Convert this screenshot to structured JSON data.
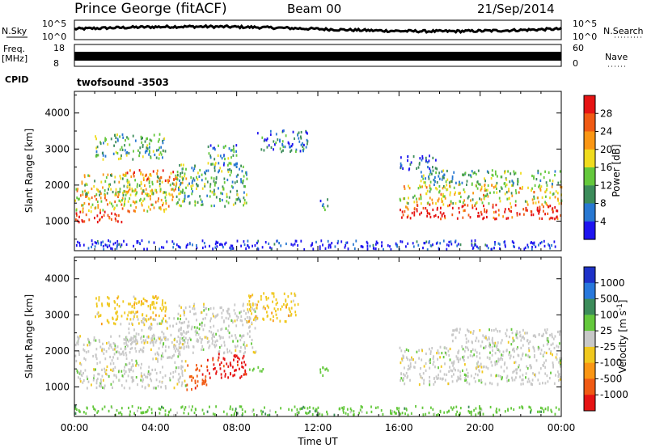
{
  "header": {
    "title": "Prince George (fitACF)",
    "beam": "Beam 00",
    "date": "21/Sep/2014"
  },
  "strips": {
    "nsky_label": "N.Sky",
    "nsky_ticks_left": [
      "10^5",
      "10^0"
    ],
    "nsky_ticks_right": [
      "10^5",
      "10^0"
    ],
    "nsearch_label": "N.Search",
    "freq_label": "Freq.",
    "freq_unit": "[MHz]",
    "freq_ticks": [
      "18",
      "8"
    ],
    "nave_label": "Nave",
    "nave_ticks": [
      "60",
      "0"
    ],
    "cpid_label": "CPID",
    "cpid_value": "twofsound -3503"
  },
  "chart_data": [
    {
      "type": "heatmap",
      "ylabel": "Slant Range [km]",
      "xlabel": "Time UT",
      "x_ticks": [
        "00:00",
        "04:00",
        "08:00",
        "12:00",
        "16:00",
        "20:00",
        "00:00"
      ],
      "y_ticks": [
        "1000",
        "2000",
        "3000",
        "4000"
      ],
      "ylim": [
        180,
        4600
      ],
      "colorbar": {
        "label": "Power [dB]",
        "ticks": [
          "4",
          "8",
          "12",
          "16",
          "20",
          "24",
          "28"
        ],
        "colors": [
          "#1e14f0",
          "#2878d2",
          "#3c8c5a",
          "#64c83c",
          "#f0dc1e",
          "#fa9614",
          "#f05a14",
          "#e61414"
        ]
      },
      "regions": [
        {
          "t0": 0.0,
          "t1": 2.5,
          "r0": 950,
          "r1": 1250,
          "level": 0.95
        },
        {
          "t0": 0.0,
          "t1": 5.0,
          "r0": 1250,
          "r1": 1900,
          "level": 0.6
        },
        {
          "t0": 0.3,
          "t1": 5.5,
          "r0": 1700,
          "r1": 2300,
          "level": 0.5
        },
        {
          "t0": 2.5,
          "t1": 5.0,
          "r0": 2100,
          "r1": 2400,
          "level": 0.8
        },
        {
          "t0": 1.0,
          "t1": 4.5,
          "r0": 2700,
          "r1": 3400,
          "level": 0.35
        },
        {
          "t0": 5.0,
          "t1": 8.5,
          "r0": 1400,
          "r1": 2600,
          "level": 0.35
        },
        {
          "t0": 6.5,
          "t1": 8.0,
          "r0": 2500,
          "r1": 3100,
          "level": 0.3
        },
        {
          "t0": 9.0,
          "t1": 11.5,
          "r0": 2900,
          "r1": 3500,
          "level": 0.2
        },
        {
          "t0": 12.0,
          "t1": 12.5,
          "r0": 1300,
          "r1": 1600,
          "level": 0.25
        },
        {
          "t0": 16.0,
          "t1": 24.0,
          "r0": 1050,
          "r1": 1450,
          "level": 0.9
        },
        {
          "t0": 16.0,
          "t1": 24.0,
          "r0": 1450,
          "r1": 2000,
          "level": 0.55
        },
        {
          "t0": 17.0,
          "t1": 24.0,
          "r0": 2000,
          "r1": 2400,
          "level": 0.35
        },
        {
          "t0": 16.0,
          "t1": 18.0,
          "r0": 2400,
          "r1": 2800,
          "level": 0.15
        },
        {
          "t0": 0.0,
          "t1": 24.0,
          "r0": 200,
          "r1": 450,
          "level": 0.05
        }
      ]
    },
    {
      "type": "heatmap",
      "ylabel": "Slant Range [km]",
      "xlabel": "Time UT",
      "x_ticks": [
        "00:00",
        "04:00",
        "08:00",
        "12:00",
        "16:00",
        "20:00",
        "00:00"
      ],
      "y_ticks": [
        "1000",
        "2000",
        "3000",
        "4000"
      ],
      "ylim": [
        180,
        4600
      ],
      "colorbar": {
        "label": "Velocity [m s^-1]",
        "ticks": [
          "1000",
          "500",
          "100",
          "25",
          "-25",
          "-100",
          "-500",
          "-1000"
        ],
        "colors": [
          "#1e32c8",
          "#2878dc",
          "#3c8c5a",
          "#64c83c",
          "#c8c8c8",
          "#f0c81e",
          "#fa9614",
          "#f05a14",
          "#e61414"
        ]
      },
      "regions": [
        {
          "t0": 0.0,
          "t1": 5.5,
          "r0": 950,
          "r1": 2400,
          "cls": 4
        },
        {
          "t0": 2.5,
          "t1": 5.0,
          "r0": 2200,
          "r1": 2900,
          "cls": 4
        },
        {
          "t0": 5.0,
          "t1": 9.0,
          "r0": 1900,
          "r1": 3300,
          "cls": 4
        },
        {
          "t0": 5.5,
          "t1": 6.5,
          "r0": 900,
          "r1": 1600,
          "cls": 7
        },
        {
          "t0": 6.5,
          "t1": 8.5,
          "r0": 1200,
          "r1": 1900,
          "cls": 8
        },
        {
          "t0": 8.5,
          "t1": 9.3,
          "r0": 1350,
          "r1": 1550,
          "cls": 3
        },
        {
          "t0": 12.0,
          "t1": 12.5,
          "r0": 1300,
          "r1": 1650,
          "cls": 3
        },
        {
          "t0": 1.0,
          "t1": 4.5,
          "r0": 2700,
          "r1": 3500,
          "cls": 5
        },
        {
          "t0": 8.5,
          "t1": 11.0,
          "r0": 2800,
          "r1": 3600,
          "cls": 5
        },
        {
          "t0": 16.0,
          "t1": 24.0,
          "r0": 1050,
          "r1": 2100,
          "cls": 4
        },
        {
          "t0": 18.5,
          "t1": 24.0,
          "r0": 2100,
          "r1": 2600,
          "cls": 4
        },
        {
          "t0": 0.0,
          "t1": 24.0,
          "r0": 200,
          "r1": 450,
          "cls": 3
        }
      ]
    }
  ]
}
